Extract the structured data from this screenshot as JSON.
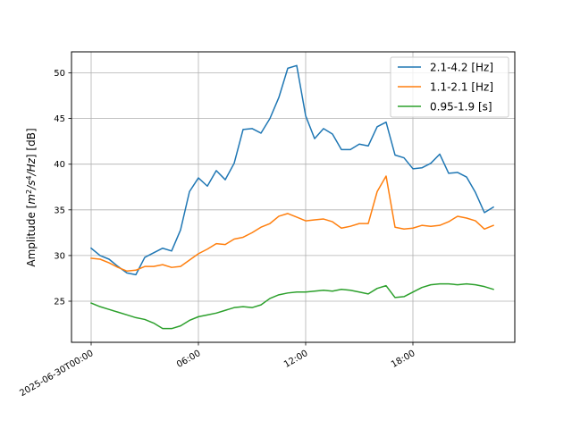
{
  "chart_data": {
    "type": "line",
    "title": "",
    "xlabel": "",
    "ylabel_prefix": "Amplitude [",
    "ylabel_unit_m": "m",
    "ylabel_unit_exp1": "2",
    "ylabel_unit_mid": "/s",
    "ylabel_unit_exp2": "4",
    "ylabel_unit_end": "/Hz",
    "ylabel_suffix": "] [dB]",
    "x_is_time": true,
    "x_ticks": [
      {
        "hours": 0,
        "label": "2025-06-30T00:00"
      },
      {
        "hours": 6,
        "label": "06:00"
      },
      {
        "hours": 12,
        "label": "12:00"
      },
      {
        "hours": 18,
        "label": "18:00"
      }
    ],
    "xlim_hours": [
      -1.1,
      23.7
    ],
    "ylim": [
      20.5,
      52.3
    ],
    "y_ticks": [
      25,
      30,
      35,
      40,
      45,
      50
    ],
    "grid": true,
    "legend_position": "upper-right",
    "x_hours": [
      0,
      0.5,
      1,
      1.5,
      2,
      2.5,
      3,
      3.5,
      4,
      4.5,
      5,
      5.5,
      6,
      6.5,
      7,
      7.5,
      8,
      8.5,
      9,
      9.5,
      10,
      10.5,
      11,
      11.5,
      12,
      12.5,
      13,
      13.5,
      14,
      14.5,
      15,
      15.5,
      16,
      16.5,
      17,
      17.5,
      18,
      18.5,
      19,
      19.5,
      20,
      20.5,
      21,
      21.5,
      22,
      22.5
    ],
    "series": [
      {
        "name": "2.1-4.2 [Hz]",
        "color": "#1f77b4",
        "values": [
          30.8,
          30.0,
          29.6,
          28.8,
          28.1,
          27.9,
          29.8,
          30.3,
          30.8,
          30.5,
          32.8,
          37.0,
          38.5,
          37.6,
          39.3,
          38.3,
          40.1,
          43.8,
          43.9,
          43.4,
          45.0,
          47.3,
          50.5,
          50.8,
          45.3,
          42.8,
          43.9,
          43.3,
          41.6,
          41.6,
          42.2,
          42.0,
          44.1,
          44.6,
          41.0,
          40.7,
          39.5,
          39.6,
          40.1,
          41.1,
          39.0,
          39.1,
          38.6,
          36.9,
          34.7,
          35.3
        ]
      },
      {
        "name": "1.1-2.1 [Hz]",
        "color": "#ff7f0e",
        "values": [
          29.7,
          29.6,
          29.2,
          28.7,
          28.3,
          28.4,
          28.8,
          28.8,
          29.0,
          28.7,
          28.8,
          29.5,
          30.2,
          30.7,
          31.3,
          31.2,
          31.8,
          32.0,
          32.5,
          33.1,
          33.5,
          34.3,
          34.6,
          34.2,
          33.8,
          33.9,
          34.0,
          33.7,
          33.0,
          33.2,
          33.5,
          33.5,
          37.0,
          38.7,
          33.1,
          32.9,
          33.0,
          33.3,
          33.2,
          33.3,
          33.7,
          34.3,
          34.1,
          33.8,
          32.9,
          33.3
        ]
      },
      {
        "name": "0.95-1.9 [s]",
        "color": "#2ca02c",
        "values": [
          24.8,
          24.4,
          24.1,
          23.8,
          23.5,
          23.2,
          23.0,
          22.6,
          22.0,
          22.0,
          22.3,
          22.9,
          23.3,
          23.5,
          23.7,
          24.0,
          24.3,
          24.4,
          24.3,
          24.6,
          25.3,
          25.7,
          25.9,
          26.0,
          26.0,
          26.1,
          26.2,
          26.1,
          26.3,
          26.2,
          26.0,
          25.8,
          26.4,
          26.7,
          25.4,
          25.5,
          26.0,
          26.5,
          26.8,
          26.9,
          26.9,
          26.8,
          26.9,
          26.8,
          26.6,
          26.3
        ]
      }
    ]
  }
}
